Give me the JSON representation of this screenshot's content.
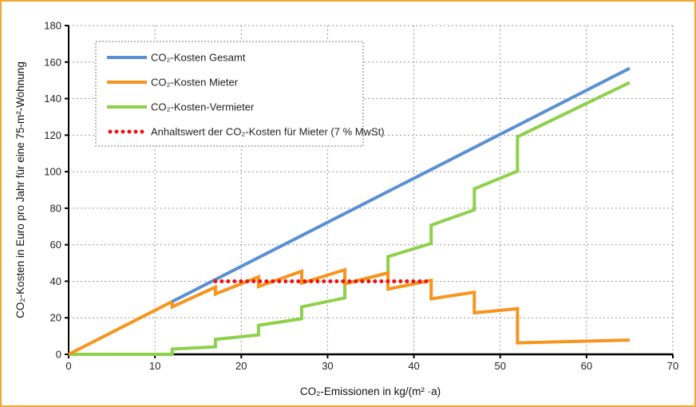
{
  "chart_data": {
    "type": "line",
    "title": "",
    "xlabel": "CO₂-Emissionen in kg/(m² ·a)",
    "ylabel": "CO₂-Kosten in Euro pro Jahr für eine 75-m²-Wohnung",
    "xlim": [
      0,
      70
    ],
    "ylim": [
      0,
      180
    ],
    "xticks": [
      0,
      10,
      20,
      30,
      40,
      50,
      60,
      70
    ],
    "yticks": [
      0,
      20,
      40,
      60,
      80,
      100,
      120,
      140,
      160,
      180
    ],
    "grid": true,
    "legend_position": "top-left",
    "series": [
      {
        "name": "CO₂-Kosten Gesamt",
        "color": "#5b8fd4",
        "style": "solid",
        "x": [
          12,
          65
        ],
        "y": [
          28.9,
          156.6
        ]
      },
      {
        "name": "CO₂-Kosten Mieter",
        "color": "#f7941d",
        "style": "solid",
        "x": [
          0,
          12,
          12,
          17,
          17,
          22,
          22,
          27,
          27,
          32,
          32,
          37,
          37,
          42,
          42,
          47,
          47,
          52,
          52,
          65
        ],
        "y": [
          0,
          28.9,
          26,
          36.8,
          33,
          42.4,
          37.1,
          45.5,
          39,
          46.3,
          38.6,
          44.6,
          35.7,
          40.5,
          30.4,
          34,
          22.7,
          25,
          6.3,
          7.8
        ]
      },
      {
        "name": "CO₂-Kosten-Vermieter",
        "color": "#8dd14b",
        "style": "solid",
        "x": [
          0,
          12,
          12,
          17,
          17,
          22,
          22,
          27,
          27,
          32,
          32,
          37,
          37,
          42,
          42,
          47,
          47,
          52,
          52,
          65
        ],
        "y": [
          0,
          0,
          2.9,
          4.1,
          8.2,
          10.6,
          15.9,
          19.5,
          26,
          30.9,
          38.6,
          44.6,
          53.5,
          60.7,
          70.7,
          79.1,
          90.6,
          100.3,
          119.1,
          148.8
        ]
      },
      {
        "name": "Anhaltswert der CO₂-Kosten für Mieter (7 % MwSt)",
        "color": "#ee1111",
        "style": "dotted",
        "x": [
          17,
          42
        ],
        "y": [
          40,
          40
        ]
      }
    ]
  }
}
